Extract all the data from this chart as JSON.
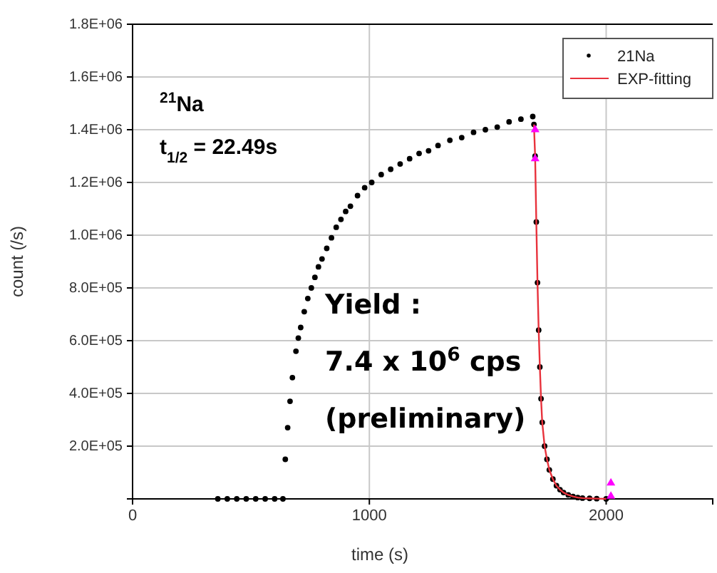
{
  "chart_data": {
    "type": "scatter",
    "xlabel": "time (s)",
    "ylabel": "count (/s)",
    "xlim": [
      0,
      2450
    ],
    "ylim": [
      0,
      1800000
    ],
    "xticks": [
      0,
      1000,
      2000
    ],
    "yticks": [
      {
        "value": 200000,
        "label": "2.0E+05"
      },
      {
        "value": 400000,
        "label": "4.0E+05"
      },
      {
        "value": 600000,
        "label": "6.0E+05"
      },
      {
        "value": 800000,
        "label": "8.0E+05"
      },
      {
        "value": 1000000,
        "label": "1.0E+06"
      },
      {
        "value": 1200000,
        "label": "1.2E+06"
      },
      {
        "value": 1400000,
        "label": "1.4E+06"
      },
      {
        "value": 1600000,
        "label": "1.6E+06"
      },
      {
        "value": 1800000,
        "label": "1.8E+06"
      }
    ],
    "grid": true,
    "legend": "top right",
    "annotations": [
      "$^{21}$Na",
      "t$_{1/2}$ = 22.49s",
      "Yield :",
      "7.4 x 10$^{6}$ cps",
      "(preliminary)"
    ],
    "series": [
      {
        "name": "21Na",
        "color": "#000000",
        "marker": "circle",
        "x": [
          360,
          400,
          440,
          480,
          520,
          560,
          600,
          635,
          645,
          655,
          665,
          675,
          690,
          700,
          710,
          725,
          740,
          755,
          770,
          785,
          800,
          820,
          840,
          860,
          880,
          900,
          920,
          950,
          980,
          1010,
          1050,
          1090,
          1130,
          1170,
          1210,
          1250,
          1290,
          1340,
          1390,
          1440,
          1490,
          1540,
          1590,
          1640,
          1690,
          1695,
          1700,
          1705,
          1710,
          1715,
          1720,
          1725,
          1730,
          1740,
          1750,
          1760,
          1775,
          1790,
          1805,
          1820,
          1840,
          1860,
          1880,
          1900,
          1930,
          1960,
          2000
        ],
        "values": [
          0,
          0,
          0,
          0,
          0,
          0,
          0,
          0,
          150000,
          270000,
          370000,
          460000,
          560000,
          610000,
          650000,
          710000,
          760000,
          800000,
          840000,
          880000,
          910000,
          950000,
          990000,
          1030000,
          1060000,
          1090000,
          1110000,
          1150000,
          1180000,
          1200000,
          1230000,
          1250000,
          1270000,
          1290000,
          1310000,
          1320000,
          1340000,
          1360000,
          1370000,
          1390000,
          1400000,
          1410000,
          1430000,
          1440000,
          1450000,
          1420000,
          1300000,
          1050000,
          820000,
          640000,
          500000,
          380000,
          290000,
          200000,
          150000,
          110000,
          75000,
          50000,
          35000,
          24000,
          15000,
          9000,
          5000,
          3000,
          2000,
          1000,
          0
        ]
      },
      {
        "name": "EXP-fitting",
        "type": "line",
        "color": "#e8323c",
        "marker": "none",
        "x": [
          1695,
          1700,
          1705,
          1710,
          1715,
          1720,
          1725,
          1730,
          1740,
          1750,
          1760,
          1775,
          1790,
          1805,
          1820,
          1840,
          1860,
          1880,
          1900,
          1930,
          1960,
          2000
        ],
        "values": [
          1420000,
          1300000,
          1050000,
          820000,
          640000,
          500000,
          380000,
          290000,
          200000,
          150000,
          110000,
          75000,
          50000,
          35000,
          24000,
          15000,
          9000,
          5000,
          3000,
          2000,
          1000,
          0
        ]
      },
      {
        "color": "#ff00ff",
        "marker": "triangle",
        "x": [
          1700,
          1700,
          2020,
          2020
        ],
        "values": [
          1400000,
          1290000,
          60000,
          10000
        ]
      }
    ]
  }
}
